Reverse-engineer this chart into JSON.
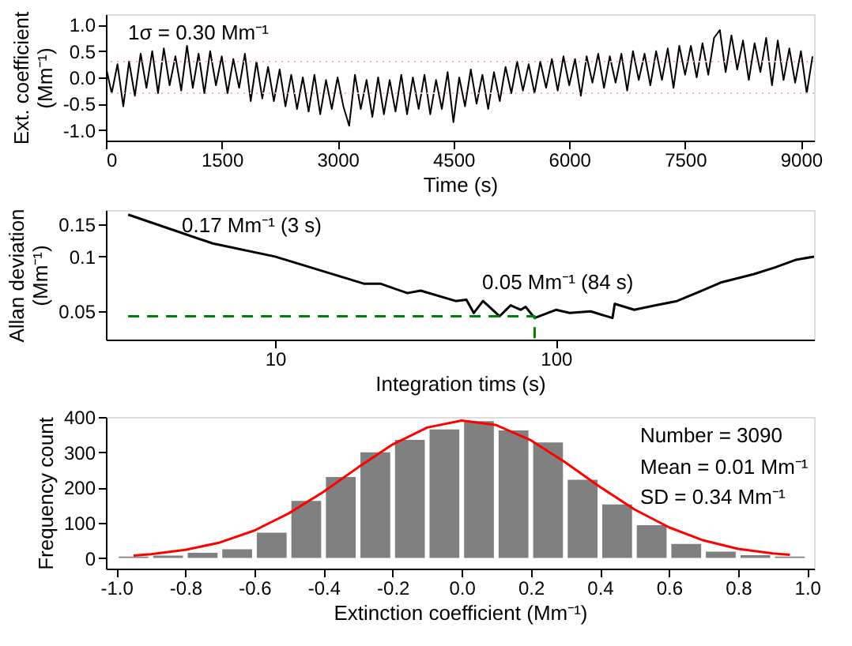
{
  "chart_data": [
    {
      "type": "line",
      "xlabel": "Time (s)",
      "ylabel": "Ext. coefficient\n(Mm⁻¹)",
      "annotations": [
        "1σ = 0.30 Mm⁻¹"
      ],
      "xlim": [
        0,
        9170
      ],
      "xticks": [
        0,
        {
          "value": 1500,
          "label": "1500"
        },
        {
          "value": 3000,
          "label": "3000"
        },
        {
          "value": 4500,
          "label": "4500"
        },
        {
          "value": 6000,
          "label": "6000"
        },
        {
          "value": 7500,
          "label": "7500"
        },
        {
          "value": 9000,
          "label": "9000"
        }
      ],
      "ylim": [
        -1.2,
        1.2
      ],
      "yticks": [
        {
          "value": -1,
          "label": "-1.0"
        },
        {
          "value": -0.5,
          "label": "-0.5"
        },
        {
          "value": 0,
          "label": "0.0"
        },
        {
          "value": 0.5,
          "label": "0.5"
        },
        {
          "value": 1,
          "label": "1.0"
        }
      ],
      "ref_lines": [
        {
          "axis": "y",
          "value": 0.3,
          "color": "#ffb0b0",
          "line_style": "dotted"
        },
        {
          "axis": "y",
          "value": -0.3,
          "color": "#ffb0b0",
          "line_style": "dotted"
        }
      ],
      "grid": false,
      "x": [
        0,
        75,
        150,
        225,
        300,
        375,
        450,
        525,
        600,
        675,
        750,
        825,
        900,
        975,
        1050,
        1125,
        1200,
        1275,
        1350,
        1425,
        1500,
        1575,
        1650,
        1725,
        1800,
        1875,
        1950,
        2025,
        2100,
        2175,
        2250,
        2325,
        2400,
        2475,
        2550,
        2625,
        2700,
        2775,
        2850,
        2925,
        3000,
        3075,
        3150,
        3225,
        3300,
        3375,
        3450,
        3525,
        3600,
        3675,
        3750,
        3825,
        3900,
        3975,
        4050,
        4125,
        4200,
        4275,
        4350,
        4425,
        4500,
        4575,
        4650,
        4725,
        4800,
        4875,
        4950,
        5025,
        5100,
        5175,
        5250,
        5325,
        5400,
        5475,
        5550,
        5625,
        5700,
        5775,
        5850,
        5925,
        6000,
        6075,
        6150,
        6225,
        6300,
        6375,
        6450,
        6525,
        6600,
        6675,
        6750,
        6825,
        6900,
        6975,
        7050,
        7125,
        7200,
        7275,
        7350,
        7425,
        7500,
        7575,
        7650,
        7725,
        7800,
        7875,
        7950,
        8025,
        8100,
        8175,
        8250,
        8325,
        8400,
        8475,
        8550,
        8625,
        8700,
        8775,
        8850,
        8925,
        9000,
        9075,
        9150
      ],
      "series": [
        {
          "color": "#000000",
          "line_style": "solid",
          "values": [
            0.2,
            -0.3,
            0.25,
            -0.55,
            0.3,
            -0.35,
            0.45,
            -0.2,
            0.5,
            -0.3,
            0.55,
            -0.15,
            0.4,
            -0.25,
            0.6,
            -0.2,
            0.45,
            -0.3,
            0.5,
            -0.15,
            0.4,
            -0.3,
            0.35,
            -0.2,
            0.45,
            -0.45,
            0.3,
            -0.4,
            0.2,
            -0.45,
            0.15,
            -0.55,
            0.05,
            -0.6,
            0.0,
            -0.65,
            0.05,
            -0.7,
            -0.05,
            -0.6,
            0.0,
            -0.55,
            -0.92,
            0.05,
            -0.6,
            -0.05,
            -0.75,
            0.0,
            -0.7,
            -0.05,
            -0.65,
            0.05,
            -0.7,
            0.0,
            -0.6,
            0.05,
            -0.7,
            -0.05,
            -0.6,
            0.1,
            -0.85,
            0.0,
            -0.55,
            0.15,
            -0.5,
            0.05,
            -0.6,
            0.1,
            -0.45,
            0.2,
            -0.3,
            0.3,
            -0.25,
            0.25,
            -0.3,
            0.3,
            -0.2,
            0.35,
            -0.25,
            0.4,
            -0.15,
            0.35,
            -0.35,
            0.4,
            -0.1,
            0.45,
            -0.2,
            0.4,
            -0.1,
            0.45,
            -0.25,
            0.5,
            -0.05,
            0.45,
            -0.15,
            0.5,
            -0.05,
            0.55,
            -0.2,
            0.6,
            0.05,
            0.6,
            0.0,
            0.65,
            0.05,
            0.75,
            0.9,
            0.1,
            0.8,
            0.15,
            0.7,
            -0.05,
            0.65,
            0.1,
            0.75,
            -0.15,
            0.7,
            -0.05,
            0.55,
            -0.1,
            0.5,
            -0.3,
            0.4
          ]
        }
      ]
    },
    {
      "type": "line",
      "xlabel": "Integration tims (s)",
      "ylabel": "Allan deviation\n(Mm⁻¹)",
      "annotations": [
        "0.17 Mm⁻¹ (3 s)",
        "0.05 Mm⁻¹ (84 s)"
      ],
      "log": "xy",
      "xlim": [
        2.5,
        830
      ],
      "xticks": [
        10,
        100
      ],
      "ylim": [
        0.035,
        0.18
      ],
      "yticks": [
        0.05,
        0.1,
        0.15
      ],
      "grid": false,
      "series": [
        {
          "color": "#000000",
          "line_style": "solid",
          "x": [
            3,
            6,
            10,
            20.7,
            23.7,
            29.6,
            33,
            44,
            48,
            51,
            55,
            63,
            69,
            75,
            78,
            84,
            100,
            112,
            133,
            159,
            162,
            190,
            227,
            270,
            323,
            386,
            505,
            600,
            716,
            830
          ],
          "values": [
            0.17,
            0.118,
            0.1,
            0.071,
            0.071,
            0.063,
            0.065,
            0.057,
            0.058,
            0.049,
            0.057,
            0.047,
            0.054,
            0.051,
            0.053,
            0.046,
            0.051,
            0.049,
            0.05,
            0.046,
            0.055,
            0.051,
            0.054,
            0.057,
            0.064,
            0.072,
            0.08,
            0.087,
            0.096,
            0.1
          ]
        },
        {
          "color": "#008000",
          "line_style": "dashed",
          "x": [
            3,
            84,
            84
          ],
          "values": [
            0.047,
            0.047,
            0.035
          ]
        }
      ]
    },
    {
      "type": "histogram",
      "xlabel": "Extinction coefficient (Mm⁻¹)",
      "ylabel": "Frequency count",
      "annotations": [
        "Number = 3090",
        "Mean = 0.01 Mm⁻¹",
        "SD = 0.34 Mm⁻¹"
      ],
      "xlim": [
        -1.03,
        1.02
      ],
      "xticks": [
        {
          "value": -1,
          "label": "-1.0"
        },
        {
          "value": -0.8,
          "label": "-0.8"
        },
        {
          "value": -0.6,
          "label": "-0.6"
        },
        {
          "value": -0.4,
          "label": "-0.4"
        },
        {
          "value": -0.2,
          "label": "-0.2"
        },
        {
          "value": 0,
          "label": "0.0"
        },
        {
          "value": 0.2,
          "label": "0.2"
        },
        {
          "value": 0.4,
          "label": "0.4"
        },
        {
          "value": 0.6,
          "label": "0.6"
        },
        {
          "value": 0.8,
          "label": "0.8"
        },
        {
          "value": 1,
          "label": "1.0"
        }
      ],
      "ylim": [
        -30,
        400
      ],
      "yticks": [
        0,
        100,
        200,
        300,
        400
      ],
      "grid": false,
      "color": "#808080",
      "bins": [
        -1.0,
        -0.9,
        -0.8,
        -0.7,
        -0.6,
        -0.5,
        -0.4,
        -0.3,
        -0.2,
        -0.1,
        0.0,
        0.1,
        0.2,
        0.3,
        0.4,
        0.5,
        0.6,
        0.7,
        0.8,
        0.9,
        1.0
      ],
      "values": [
        4,
        7,
        15,
        25,
        72,
        162,
        230,
        300,
        335,
        365,
        388,
        362,
        328,
        222,
        152,
        93,
        40,
        18,
        8,
        4
      ],
      "series": [
        {
          "type": "line",
          "color": "#ff0000",
          "line_style": "solid",
          "x": [
            -0.95,
            -0.9,
            -0.8,
            -0.7,
            -0.6,
            -0.5,
            -0.4,
            -0.3,
            -0.2,
            -0.1,
            0.0,
            0.1,
            0.2,
            0.3,
            0.4,
            0.5,
            0.6,
            0.7,
            0.8,
            0.9,
            0.95
          ],
          "values": [
            7,
            11,
            23,
            44,
            78,
            127,
            188,
            257,
            322,
            370,
            390,
            377,
            334,
            271,
            202,
            138,
            87,
            50,
            26,
            13,
            9
          ]
        }
      ]
    }
  ]
}
